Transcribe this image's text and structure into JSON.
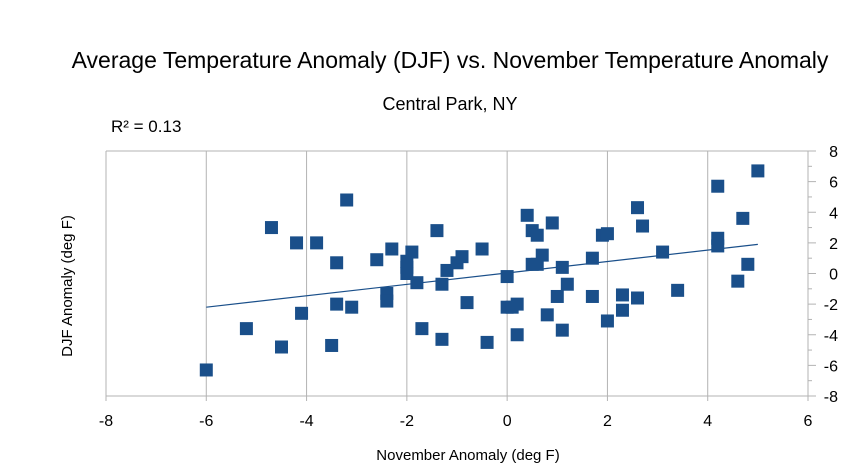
{
  "chart_data": {
    "type": "scatter",
    "title": "Average Temperature Anomaly (DJF) vs. November Temperature Anomaly",
    "subtitle": "Central Park, NY",
    "annotation": "R² = 0.13",
    "xlabel": "November Anomaly (deg F)",
    "ylabel": "DJF Anomaly (deg F)",
    "xlim": [
      -8,
      6
    ],
    "ylim": [
      -8,
      8
    ],
    "xticks": [
      -8,
      -6,
      -4,
      -2,
      0,
      2,
      4,
      6
    ],
    "yticks": [
      -8,
      -6,
      -4,
      -2,
      0,
      2,
      4,
      6,
      8
    ],
    "grid": "vertical",
    "marker_color": "#1a4f8a",
    "trendline": {
      "x": [
        -6,
        5
      ],
      "y": [
        -2.2,
        1.9
      ]
    },
    "points": [
      {
        "x": -6.0,
        "y": -6.3
      },
      {
        "x": -5.2,
        "y": -3.6
      },
      {
        "x": -4.7,
        "y": 3.0
      },
      {
        "x": -4.5,
        "y": -4.8
      },
      {
        "x": -4.2,
        "y": 2.0
      },
      {
        "x": -4.1,
        "y": -2.6
      },
      {
        "x": -3.8,
        "y": 2.0
      },
      {
        "x": -3.5,
        "y": -4.7
      },
      {
        "x": -3.4,
        "y": 0.7
      },
      {
        "x": -3.4,
        "y": -2.0
      },
      {
        "x": -3.2,
        "y": 4.8
      },
      {
        "x": -3.1,
        "y": -2.2
      },
      {
        "x": -2.6,
        "y": 0.9
      },
      {
        "x": -2.4,
        "y": -1.3
      },
      {
        "x": -2.4,
        "y": -1.8
      },
      {
        "x": -2.3,
        "y": 1.6
      },
      {
        "x": -2.0,
        "y": 0.8
      },
      {
        "x": -2.0,
        "y": 0.4
      },
      {
        "x": -2.0,
        "y": 0.0
      },
      {
        "x": -1.9,
        "y": 1.4
      },
      {
        "x": -1.8,
        "y": -0.6
      },
      {
        "x": -1.7,
        "y": -3.6
      },
      {
        "x": -1.4,
        "y": 2.8
      },
      {
        "x": -1.3,
        "y": -0.7
      },
      {
        "x": -1.3,
        "y": -4.3
      },
      {
        "x": -1.2,
        "y": 0.2
      },
      {
        "x": -1.0,
        "y": 0.7
      },
      {
        "x": -0.9,
        "y": 1.1
      },
      {
        "x": -0.8,
        "y": -1.9
      },
      {
        "x": -0.5,
        "y": 1.6
      },
      {
        "x": -0.4,
        "y": -4.5
      },
      {
        "x": 0.0,
        "y": -0.2
      },
      {
        "x": 0.0,
        "y": -2.2
      },
      {
        "x": 0.1,
        "y": -2.2
      },
      {
        "x": 0.2,
        "y": -2.0
      },
      {
        "x": 0.2,
        "y": -4.0
      },
      {
        "x": 0.4,
        "y": 3.8
      },
      {
        "x": 0.5,
        "y": 2.8
      },
      {
        "x": 0.5,
        "y": 0.6
      },
      {
        "x": 0.6,
        "y": 2.5
      },
      {
        "x": 0.6,
        "y": 0.6
      },
      {
        "x": 0.7,
        "y": 1.2
      },
      {
        "x": 0.8,
        "y": -2.7
      },
      {
        "x": 0.9,
        "y": 3.3
      },
      {
        "x": 1.0,
        "y": -1.5
      },
      {
        "x": 1.1,
        "y": 0.4
      },
      {
        "x": 1.1,
        "y": -3.7
      },
      {
        "x": 1.2,
        "y": -0.7
      },
      {
        "x": 1.7,
        "y": 1.0
      },
      {
        "x": 1.7,
        "y": -1.5
      },
      {
        "x": 1.9,
        "y": 2.5
      },
      {
        "x": 2.0,
        "y": 2.6
      },
      {
        "x": 2.0,
        "y": -3.1
      },
      {
        "x": 2.3,
        "y": -1.4
      },
      {
        "x": 2.3,
        "y": -2.4
      },
      {
        "x": 2.6,
        "y": 4.3
      },
      {
        "x": 2.6,
        "y": -1.6
      },
      {
        "x": 2.7,
        "y": 3.1
      },
      {
        "x": 3.1,
        "y": 1.4
      },
      {
        "x": 3.4,
        "y": -1.1
      },
      {
        "x": 4.2,
        "y": 5.7
      },
      {
        "x": 4.2,
        "y": 2.3
      },
      {
        "x": 4.2,
        "y": 1.8
      },
      {
        "x": 4.6,
        "y": -0.5
      },
      {
        "x": 4.7,
        "y": 3.6
      },
      {
        "x": 4.8,
        "y": 0.6
      },
      {
        "x": 5.0,
        "y": 6.7
      }
    ]
  }
}
